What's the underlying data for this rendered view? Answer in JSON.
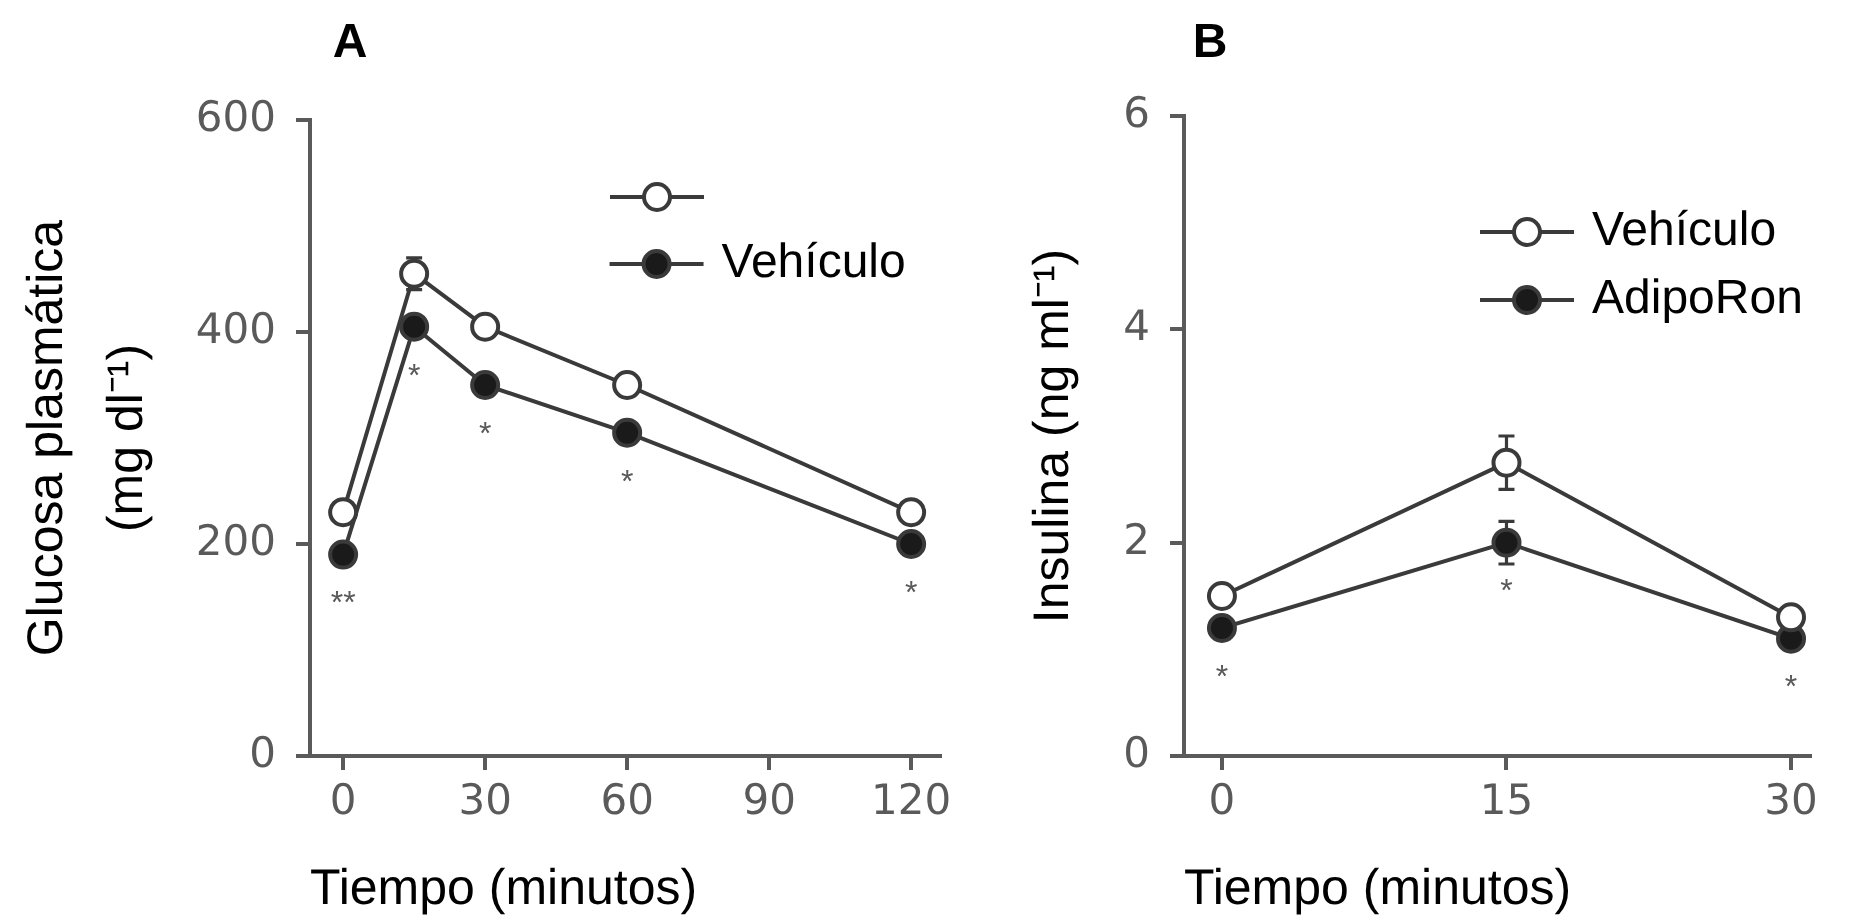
{
  "chart_data": [
    {
      "type": "line",
      "title": "A",
      "xlabel": "Tiempo (minutos)",
      "ylabel": "Glucosa plasmática\n(mg dl⁻¹)",
      "x": [
        0,
        15,
        30,
        60,
        120
      ],
      "series": [
        {
          "color": "#ffffff",
          "values": [
            230,
            455,
            405,
            350,
            230
          ],
          "errors": [
            null,
            15,
            null,
            null,
            null
          ]
        },
        {
          "name": "Vehículo",
          "color": "#1a1a1a",
          "values": [
            190,
            405,
            350,
            305,
            200
          ]
        }
      ],
      "xlim": [
        -7,
        126
      ],
      "xticks": [
        0,
        30,
        60,
        90,
        120
      ],
      "ylim": [
        0,
        600
      ],
      "yticks": [
        0,
        200,
        400,
        600
      ],
      "grid": false,
      "legend": "top right",
      "marker": "circle",
      "line_style": "solid",
      "annotations": [
        "**",
        "*",
        "*",
        "*",
        "*"
      ]
    },
    {
      "type": "line",
      "title": "B",
      "xlabel": "Tiempo (minutos)",
      "ylabel": "Insulina (ng ml⁻¹)",
      "x": [
        0,
        15,
        30
      ],
      "series": [
        {
          "name": "Vehículo",
          "color": "#ffffff",
          "values": [
            1.5,
            2.75,
            1.3
          ],
          "errors": [
            null,
            0.25,
            null
          ]
        },
        {
          "name": "AdipoRon",
          "color": "#1a1a1a",
          "values": [
            1.2,
            2.0,
            1.1
          ],
          "errors": [
            null,
            0.2,
            null
          ]
        }
      ],
      "xlim": [
        -2,
        31
      ],
      "xticks": [
        0,
        15,
        30
      ],
      "ylim": [
        0,
        6
      ],
      "yticks": [
        0,
        2,
        4,
        6
      ],
      "grid": false,
      "legend": "top right",
      "marker": "circle",
      "line_style": "solid",
      "annotations": [
        "*",
        "*",
        "*"
      ]
    }
  ]
}
